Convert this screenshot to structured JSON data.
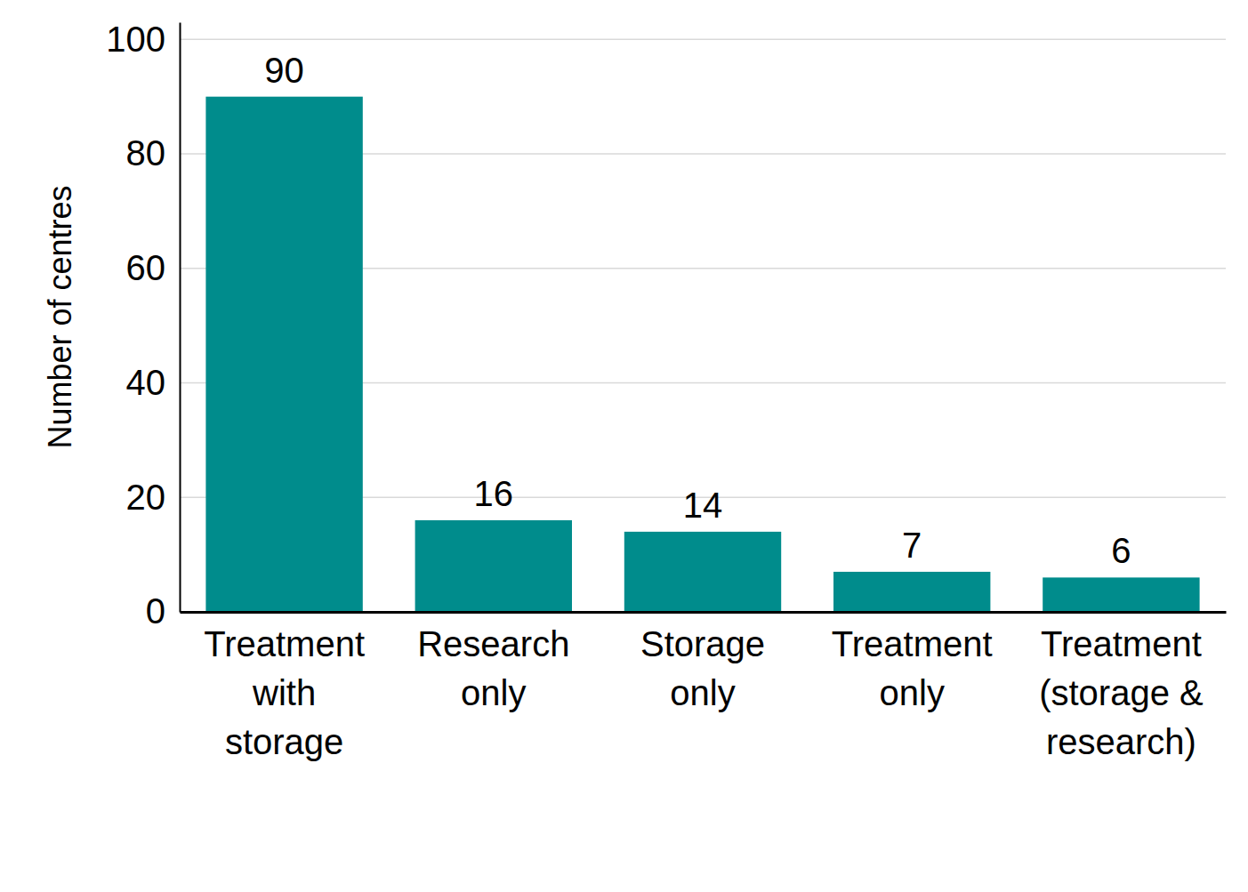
{
  "chart_data": {
    "type": "bar",
    "y_label": "Number of centres",
    "categories": [
      "Treatment\nwith\nstorage",
      "Research\nonly",
      "Storage\nonly",
      "Treatment\nonly",
      "Treatment\n(storage &\nresearch)"
    ],
    "values": [
      90,
      16,
      14,
      7,
      6
    ],
    "color": "#008c8c",
    "ylim": [
      0,
      103
    ],
    "yticks": [
      0,
      20,
      40,
      60,
      80,
      100
    ],
    "grid": true,
    "data_labels": true
  }
}
